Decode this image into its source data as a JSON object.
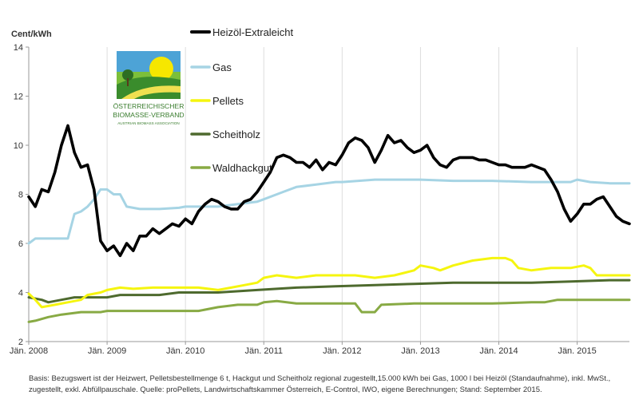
{
  "chart_data": {
    "type": "line",
    "ylabel": "Cent/kWh",
    "ylim": [
      2,
      14
    ],
    "yticks": [
      2,
      4,
      6,
      8,
      10,
      12,
      14
    ],
    "x_range": [
      "2008-01",
      "2015-09"
    ],
    "x_tick_labels": [
      {
        "date": "2008-01",
        "label": "Jän. 2008"
      },
      {
        "date": "2009-01",
        "label": "Jän. 2009"
      },
      {
        "date": "2010-01",
        "label": "Jän. 2010"
      },
      {
        "date": "2011-01",
        "label": "Jän. 2011"
      },
      {
        "date": "2012-01",
        "label": "Jän. 2012"
      },
      {
        "date": "2013-01",
        "label": "Jän. 2013"
      },
      {
        "date": "2014-01",
        "label": "Jän. 2014"
      },
      {
        "date": "2015-01",
        "label": "Jän. 2015"
      }
    ],
    "grid": "vertical",
    "legend_position": "top-center",
    "series": [
      {
        "name": "Heizöl-Extraleicht",
        "color": "#000000",
        "points": [
          [
            "2008-01",
            7.9
          ],
          [
            "2008-02",
            7.5
          ],
          [
            "2008-03",
            8.2
          ],
          [
            "2008-04",
            8.1
          ],
          [
            "2008-05",
            8.9
          ],
          [
            "2008-06",
            10.0
          ],
          [
            "2008-07",
            10.8
          ],
          [
            "2008-08",
            9.7
          ],
          [
            "2008-09",
            9.1
          ],
          [
            "2008-10",
            9.2
          ],
          [
            "2008-11",
            8.2
          ],
          [
            "2008-12",
            6.1
          ],
          [
            "2009-01",
            5.7
          ],
          [
            "2009-02",
            5.9
          ],
          [
            "2009-03",
            5.5
          ],
          [
            "2009-04",
            6.0
          ],
          [
            "2009-05",
            5.7
          ],
          [
            "2009-06",
            6.3
          ],
          [
            "2009-07",
            6.3
          ],
          [
            "2009-08",
            6.6
          ],
          [
            "2009-09",
            6.4
          ],
          [
            "2009-10",
            6.6
          ],
          [
            "2009-11",
            6.8
          ],
          [
            "2009-12",
            6.7
          ],
          [
            "2010-01",
            7.0
          ],
          [
            "2010-02",
            6.8
          ],
          [
            "2010-03",
            7.3
          ],
          [
            "2010-04",
            7.6
          ],
          [
            "2010-05",
            7.8
          ],
          [
            "2010-06",
            7.7
          ],
          [
            "2010-07",
            7.5
          ],
          [
            "2010-08",
            7.4
          ],
          [
            "2010-09",
            7.4
          ],
          [
            "2010-10",
            7.7
          ],
          [
            "2010-11",
            7.8
          ],
          [
            "2010-12",
            8.1
          ],
          [
            "2011-01",
            8.5
          ],
          [
            "2011-02",
            8.9
          ],
          [
            "2011-03",
            9.5
          ],
          [
            "2011-04",
            9.6
          ],
          [
            "2011-05",
            9.5
          ],
          [
            "2011-06",
            9.3
          ],
          [
            "2011-07",
            9.3
          ],
          [
            "2011-08",
            9.1
          ],
          [
            "2011-09",
            9.4
          ],
          [
            "2011-10",
            9.0
          ],
          [
            "2011-11",
            9.3
          ],
          [
            "2011-12",
            9.2
          ],
          [
            "2012-01",
            9.6
          ],
          [
            "2012-02",
            10.1
          ],
          [
            "2012-03",
            10.3
          ],
          [
            "2012-04",
            10.2
          ],
          [
            "2012-05",
            9.9
          ],
          [
            "2012-06",
            9.3
          ],
          [
            "2012-07",
            9.8
          ],
          [
            "2012-08",
            10.4
          ],
          [
            "2012-09",
            10.1
          ],
          [
            "2012-10",
            10.2
          ],
          [
            "2012-11",
            9.9
          ],
          [
            "2012-12",
            9.7
          ],
          [
            "2013-01",
            9.8
          ],
          [
            "2013-02",
            10.0
          ],
          [
            "2013-03",
            9.5
          ],
          [
            "2013-04",
            9.2
          ],
          [
            "2013-05",
            9.1
          ],
          [
            "2013-06",
            9.4
          ],
          [
            "2013-07",
            9.5
          ],
          [
            "2013-08",
            9.5
          ],
          [
            "2013-09",
            9.5
          ],
          [
            "2013-10",
            9.4
          ],
          [
            "2013-11",
            9.4
          ],
          [
            "2013-12",
            9.3
          ],
          [
            "2014-01",
            9.2
          ],
          [
            "2014-02",
            9.2
          ],
          [
            "2014-03",
            9.1
          ],
          [
            "2014-04",
            9.1
          ],
          [
            "2014-05",
            9.1
          ],
          [
            "2014-06",
            9.2
          ],
          [
            "2014-07",
            9.1
          ],
          [
            "2014-08",
            9.0
          ],
          [
            "2014-09",
            8.6
          ],
          [
            "2014-10",
            8.1
          ],
          [
            "2014-11",
            7.4
          ],
          [
            "2014-12",
            6.9
          ],
          [
            "2015-01",
            7.2
          ],
          [
            "2015-02",
            7.6
          ],
          [
            "2015-03",
            7.6
          ],
          [
            "2015-04",
            7.8
          ],
          [
            "2015-05",
            7.9
          ],
          [
            "2015-06",
            7.5
          ],
          [
            "2015-07",
            7.1
          ],
          [
            "2015-08",
            6.9
          ],
          [
            "2015-09",
            6.8
          ]
        ]
      },
      {
        "name": "Gas",
        "color": "#a6d4e4",
        "points": [
          [
            "2008-01",
            6.0
          ],
          [
            "2008-02",
            6.2
          ],
          [
            "2008-04",
            6.2
          ],
          [
            "2008-06",
            6.2
          ],
          [
            "2008-07",
            6.2
          ],
          [
            "2008-08",
            7.2
          ],
          [
            "2008-09",
            7.3
          ],
          [
            "2008-10",
            7.5
          ],
          [
            "2008-11",
            7.8
          ],
          [
            "2008-12",
            8.2
          ],
          [
            "2009-01",
            8.2
          ],
          [
            "2009-02",
            8.0
          ],
          [
            "2009-03",
            8.0
          ],
          [
            "2009-04",
            7.5
          ],
          [
            "2009-06",
            7.4
          ],
          [
            "2009-09",
            7.4
          ],
          [
            "2009-12",
            7.45
          ],
          [
            "2010-01",
            7.5
          ],
          [
            "2010-06",
            7.5
          ],
          [
            "2010-09",
            7.6
          ],
          [
            "2010-12",
            7.7
          ],
          [
            "2011-01",
            7.8
          ],
          [
            "2011-04",
            8.1
          ],
          [
            "2011-06",
            8.3
          ],
          [
            "2011-09",
            8.4
          ],
          [
            "2011-12",
            8.5
          ],
          [
            "2012-01",
            8.5
          ],
          [
            "2012-06",
            8.6
          ],
          [
            "2012-12",
            8.6
          ],
          [
            "2013-01",
            8.6
          ],
          [
            "2013-06",
            8.55
          ],
          [
            "2013-12",
            8.55
          ],
          [
            "2014-06",
            8.5
          ],
          [
            "2014-12",
            8.5
          ],
          [
            "2015-01",
            8.6
          ],
          [
            "2015-03",
            8.5
          ],
          [
            "2015-06",
            8.45
          ],
          [
            "2015-09",
            8.45
          ]
        ]
      },
      {
        "name": "Pellets",
        "color": "#f5f50f",
        "points": [
          [
            "2008-01",
            3.95
          ],
          [
            "2008-02",
            3.7
          ],
          [
            "2008-03",
            3.4
          ],
          [
            "2008-05",
            3.5
          ],
          [
            "2008-07",
            3.6
          ],
          [
            "2008-09",
            3.7
          ],
          [
            "2008-10",
            3.9
          ],
          [
            "2008-12",
            4.0
          ],
          [
            "2009-01",
            4.1
          ],
          [
            "2009-03",
            4.2
          ],
          [
            "2009-05",
            4.15
          ],
          [
            "2009-08",
            4.2
          ],
          [
            "2009-12",
            4.2
          ],
          [
            "2010-03",
            4.2
          ],
          [
            "2010-06",
            4.1
          ],
          [
            "2010-08",
            4.2
          ],
          [
            "2010-10",
            4.3
          ],
          [
            "2010-12",
            4.4
          ],
          [
            "2011-01",
            4.6
          ],
          [
            "2011-03",
            4.7
          ],
          [
            "2011-06",
            4.6
          ],
          [
            "2011-09",
            4.7
          ],
          [
            "2011-12",
            4.7
          ],
          [
            "2012-03",
            4.7
          ],
          [
            "2012-06",
            4.6
          ],
          [
            "2012-09",
            4.7
          ],
          [
            "2012-12",
            4.9
          ],
          [
            "2013-01",
            5.1
          ],
          [
            "2013-03",
            5.0
          ],
          [
            "2013-04",
            4.9
          ],
          [
            "2013-06",
            5.1
          ],
          [
            "2013-09",
            5.3
          ],
          [
            "2013-12",
            5.4
          ],
          [
            "2014-02",
            5.4
          ],
          [
            "2014-03",
            5.3
          ],
          [
            "2014-04",
            5.0
          ],
          [
            "2014-06",
            4.9
          ],
          [
            "2014-09",
            5.0
          ],
          [
            "2014-12",
            5.0
          ],
          [
            "2015-02",
            5.1
          ],
          [
            "2015-03",
            5.0
          ],
          [
            "2015-04",
            4.7
          ],
          [
            "2015-06",
            4.7
          ],
          [
            "2015-09",
            4.7
          ]
        ]
      },
      {
        "name": "Scheitholz",
        "color": "#4e6a2e",
        "points": [
          [
            "2008-01",
            3.8
          ],
          [
            "2008-03",
            3.7
          ],
          [
            "2008-04",
            3.6
          ],
          [
            "2008-06",
            3.7
          ],
          [
            "2008-08",
            3.8
          ],
          [
            "2008-10",
            3.8
          ],
          [
            "2008-12",
            3.8
          ],
          [
            "2009-01",
            3.8
          ],
          [
            "2009-03",
            3.9
          ],
          [
            "2009-09",
            3.9
          ],
          [
            "2009-12",
            4.0
          ],
          [
            "2010-06",
            4.0
          ],
          [
            "2010-12",
            4.1
          ],
          [
            "2011-06",
            4.2
          ],
          [
            "2011-12",
            4.25
          ],
          [
            "2012-06",
            4.3
          ],
          [
            "2012-12",
            4.35
          ],
          [
            "2013-06",
            4.4
          ],
          [
            "2013-12",
            4.4
          ],
          [
            "2014-06",
            4.4
          ],
          [
            "2014-12",
            4.45
          ],
          [
            "2015-06",
            4.5
          ],
          [
            "2015-09",
            4.5
          ]
        ]
      },
      {
        "name": "Waldhackgut",
        "color": "#88aa44",
        "points": [
          [
            "2008-01",
            2.8
          ],
          [
            "2008-02",
            2.85
          ],
          [
            "2008-04",
            3.0
          ],
          [
            "2008-06",
            3.1
          ],
          [
            "2008-09",
            3.2
          ],
          [
            "2008-12",
            3.2
          ],
          [
            "2009-01",
            3.25
          ],
          [
            "2009-06",
            3.25
          ],
          [
            "2009-12",
            3.25
          ],
          [
            "2010-03",
            3.25
          ],
          [
            "2010-06",
            3.4
          ],
          [
            "2010-09",
            3.5
          ],
          [
            "2010-12",
            3.5
          ],
          [
            "2011-01",
            3.6
          ],
          [
            "2011-03",
            3.65
          ],
          [
            "2011-06",
            3.55
          ],
          [
            "2011-12",
            3.55
          ],
          [
            "2012-03",
            3.55
          ],
          [
            "2012-04",
            3.2
          ],
          [
            "2012-06",
            3.2
          ],
          [
            "2012-07",
            3.5
          ],
          [
            "2012-12",
            3.55
          ],
          [
            "2013-06",
            3.55
          ],
          [
            "2013-12",
            3.55
          ],
          [
            "2014-06",
            3.6
          ],
          [
            "2014-08",
            3.6
          ],
          [
            "2014-10",
            3.7
          ],
          [
            "2015-06",
            3.7
          ],
          [
            "2015-09",
            3.7
          ]
        ]
      }
    ]
  },
  "logo": {
    "line1": "ÖSTERREICHISCHER",
    "line2": "BIOMASSE-VERBAND",
    "line3": "AUSTRIAN BIOMASS ASSOCIATION"
  },
  "footnote": "Basis: Bezugswert ist der Heizwert, Pelletsbestellmenge 6 t, Hackgut und Scheitholz regional zugestellt,15.000 kWh bei Gas, 1000 l bei Heizöl (Standaufnahme), inkl. MwSt., zugestellt, exkl. Abfüllpauschale. Quelle: proPellets, Landwirtschaftskammer Österreich, E-Control, IWO, eigene Berechnungen; Stand: September 2015."
}
